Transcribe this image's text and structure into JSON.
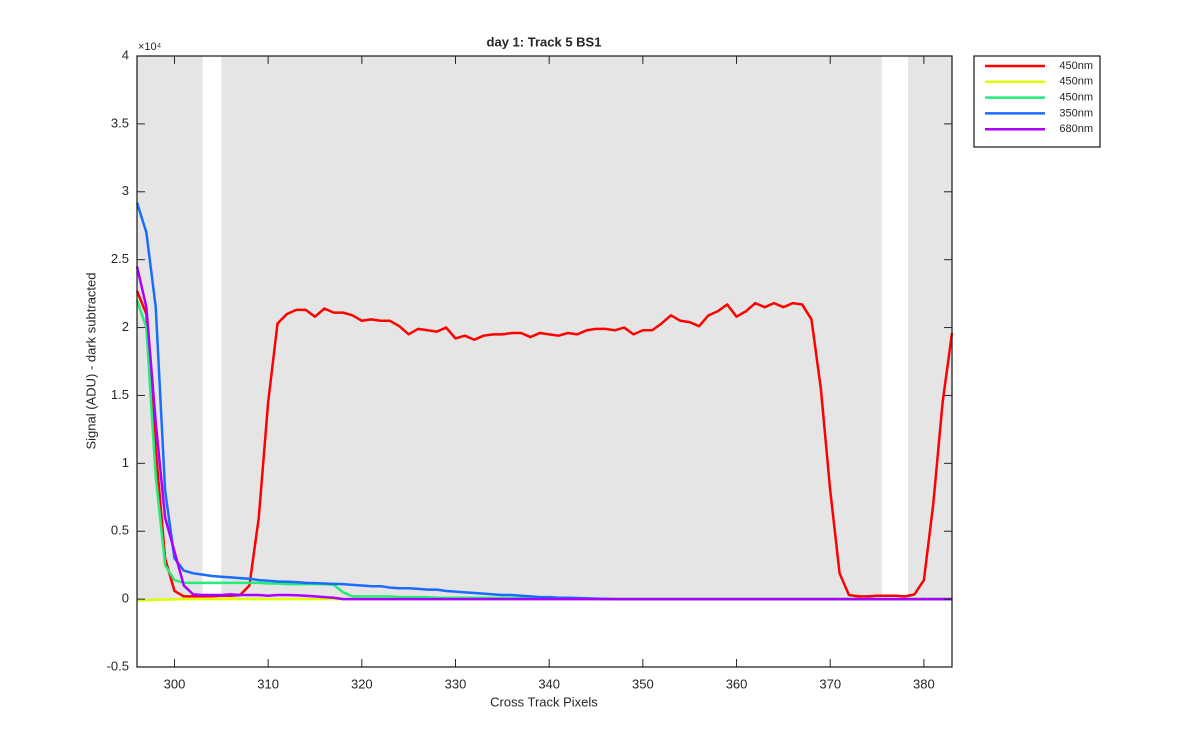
{
  "chart_data": {
    "type": "line",
    "title": "day 1: Track 5  BS1",
    "x_label": "Cross Track Pixels",
    "y_label": "Signal (ADU) - dark subtracted",
    "y_exponent_label": "×10⁴",
    "xlim": [
      296,
      383
    ],
    "ylim": [
      -5000,
      40000
    ],
    "xticks": [
      300,
      310,
      320,
      330,
      340,
      350,
      360,
      370,
      380
    ],
    "yticks": [
      {
        "value": -5000,
        "label": "-0.5"
      },
      0,
      {
        "value": 5000,
        "label": "0.5"
      },
      {
        "value": 10000,
        "label": "1"
      },
      {
        "value": 15000,
        "label": "1.5"
      },
      {
        "value": 20000,
        "label": "2"
      },
      {
        "value": 25000,
        "label": "2.5"
      },
      {
        "value": 30000,
        "label": "3"
      },
      {
        "value": 35000,
        "label": "3.5"
      },
      {
        "value": 40000,
        "label": "4"
      }
    ],
    "grid": false,
    "legend_position": "outside-upper-right",
    "shaded_regions_color": "#e5e5e5",
    "shaded_regions": [
      {
        "x": [
          296,
          303
        ],
        "y": [
          0,
          40000
        ]
      },
      {
        "x": [
          305,
          375.5
        ],
        "y": [
          0,
          40000
        ]
      },
      {
        "x": [
          378.3,
          383
        ],
        "y": [
          0,
          40000
        ]
      }
    ],
    "x": [
      296,
      297,
      298,
      299,
      300,
      301,
      302,
      303,
      304,
      305,
      306,
      307,
      308,
      309,
      310,
      311,
      312,
      313,
      314,
      315,
      316,
      317,
      318,
      319,
      320,
      321,
      322,
      323,
      324,
      325,
      326,
      327,
      328,
      329,
      330,
      331,
      332,
      333,
      334,
      335,
      336,
      337,
      338,
      339,
      340,
      341,
      342,
      343,
      344,
      345,
      346,
      347,
      348,
      349,
      350,
      351,
      352,
      353,
      354,
      355,
      356,
      357,
      358,
      359,
      360,
      361,
      362,
      363,
      364,
      365,
      366,
      367,
      368,
      369,
      370,
      371,
      372,
      373,
      374,
      375,
      376,
      377,
      378,
      379,
      380,
      381,
      382,
      383
    ],
    "series": [
      {
        "name": "450nm",
        "color": "#ff0000",
        "values": [
          22700,
          21000,
          11000,
          3000,
          600,
          200,
          200,
          200,
          200,
          250,
          250,
          300,
          1000,
          6000,
          14500,
          20300,
          21000,
          21300,
          21300,
          20800,
          21400,
          21100,
          21100,
          20900,
          20500,
          20600,
          20500,
          20500,
          20100,
          19500,
          19900,
          19800,
          19700,
          20000,
          19200,
          19400,
          19100,
          19400,
          19500,
          19500,
          19600,
          19600,
          19300,
          19600,
          19500,
          19400,
          19600,
          19500,
          19800,
          19900,
          19900,
          19800,
          20000,
          19500,
          19800,
          19800,
          20300,
          20900,
          20500,
          20400,
          20100,
          20900,
          21200,
          21700,
          20800,
          21200,
          21800,
          21500,
          21800,
          21500,
          21800,
          21700,
          20600,
          15500,
          8000,
          1900,
          300,
          200,
          200,
          250,
          250,
          250,
          200,
          350,
          1400,
          7000,
          14500,
          19600
        ]
      },
      {
        "name": "450nm",
        "color": "#dfff00",
        "values": [
          -100,
          -80,
          -50,
          -30,
          -20,
          0,
          0,
          0,
          0,
          0,
          0,
          0,
          0,
          0,
          0,
          0,
          0,
          0,
          0,
          0,
          0,
          0,
          0,
          0,
          0,
          0,
          0,
          0,
          0,
          0,
          0,
          0,
          0,
          0,
          0,
          0,
          0,
          0,
          0,
          0,
          0,
          0,
          0,
          0,
          0,
          0,
          0,
          0,
          0,
          0,
          0,
          0,
          0,
          0,
          0,
          0,
          0,
          0,
          0,
          0,
          0,
          0,
          0,
          0,
          0,
          0,
          0,
          0,
          0,
          0,
          0,
          0,
          0,
          0,
          0,
          0,
          0,
          0,
          0,
          0,
          0,
          0,
          0,
          0,
          0,
          0,
          0,
          0
        ]
      },
      {
        "name": "450nm",
        "color": "#22ee77",
        "values": [
          22000,
          20000,
          9000,
          2500,
          1400,
          1200,
          1200,
          1200,
          1200,
          1200,
          1200,
          1200,
          1200,
          1200,
          1150,
          1150,
          1100,
          1100,
          1100,
          1100,
          1100,
          1050,
          500,
          200,
          200,
          200,
          200,
          200,
          150,
          150,
          150,
          150,
          100,
          100,
          100,
          100,
          100,
          100,
          80,
          80,
          80,
          60,
          60,
          50,
          50,
          40,
          30,
          20,
          20,
          10,
          10,
          0,
          0,
          0,
          0,
          0,
          0,
          0,
          0,
          0,
          0,
          0,
          0,
          0,
          0,
          0,
          0,
          0,
          0,
          0,
          0,
          0,
          0,
          0,
          0,
          0,
          0,
          0,
          0,
          0,
          0,
          0,
          0,
          0,
          0,
          0,
          0,
          0
        ]
      },
      {
        "name": "350nm",
        "color": "#1a6cff",
        "values": [
          29200,
          27000,
          21500,
          8000,
          3000,
          2100,
          1900,
          1800,
          1700,
          1650,
          1600,
          1550,
          1500,
          1400,
          1350,
          1300,
          1280,
          1250,
          1200,
          1180,
          1150,
          1120,
          1100,
          1050,
          1000,
          950,
          950,
          850,
          800,
          800,
          750,
          700,
          700,
          600,
          550,
          500,
          450,
          400,
          350,
          300,
          300,
          250,
          200,
          150,
          150,
          100,
          100,
          80,
          60,
          40,
          20,
          0,
          0,
          0,
          0,
          0,
          0,
          0,
          0,
          0,
          0,
          0,
          0,
          0,
          0,
          0,
          0,
          0,
          0,
          0,
          0,
          0,
          0,
          0,
          0,
          0,
          0,
          0,
          0,
          0,
          0,
          0,
          0,
          0,
          0,
          0,
          0,
          0
        ]
      },
      {
        "name": "680nm",
        "color": "#aa00ff",
        "values": [
          24500,
          21500,
          13000,
          6000,
          3500,
          1000,
          350,
          300,
          300,
          300,
          350,
          300,
          300,
          300,
          250,
          300,
          300,
          280,
          250,
          200,
          150,
          100,
          0,
          0,
          0,
          0,
          0,
          0,
          0,
          0,
          0,
          0,
          0,
          0,
          0,
          0,
          0,
          0,
          0,
          0,
          0,
          0,
          0,
          0,
          0,
          0,
          0,
          0,
          0,
          0,
          0,
          0,
          0,
          0,
          0,
          0,
          0,
          0,
          0,
          0,
          0,
          0,
          0,
          0,
          0,
          0,
          0,
          0,
          0,
          0,
          0,
          0,
          0,
          0,
          0,
          0,
          0,
          0,
          0,
          0,
          0,
          0,
          0,
          0,
          0,
          0,
          0,
          0
        ]
      }
    ]
  }
}
